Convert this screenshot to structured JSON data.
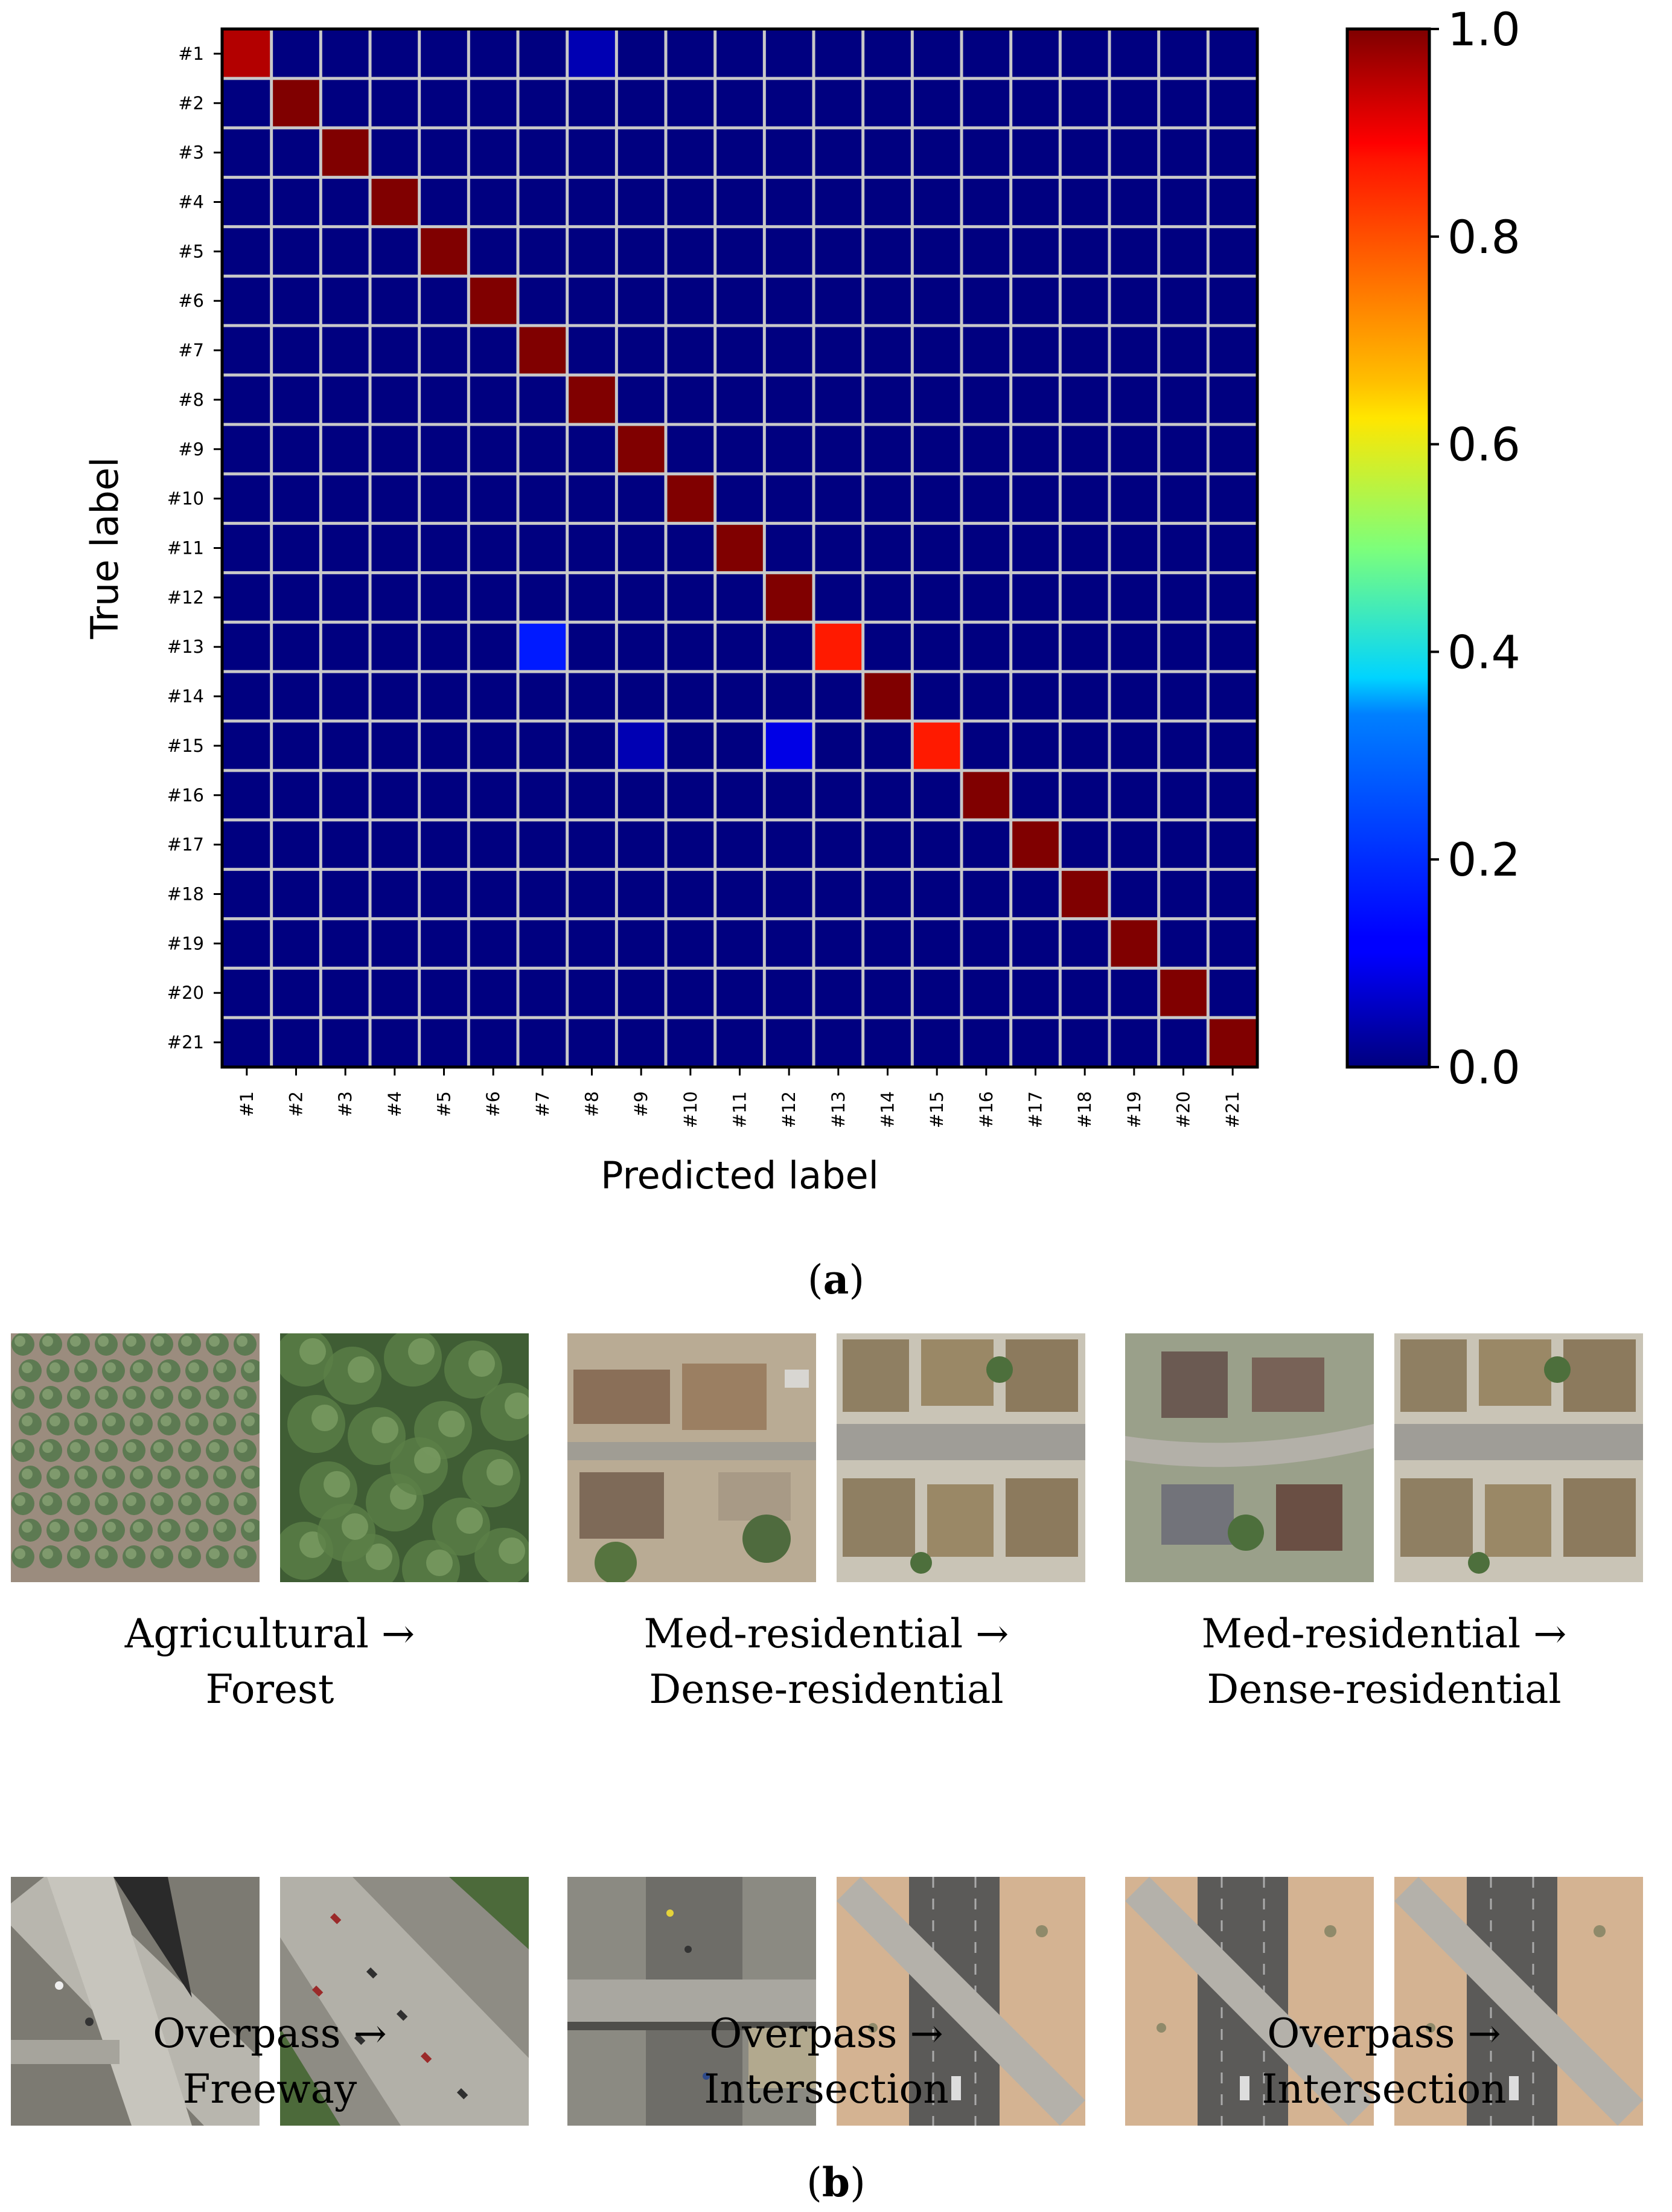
{
  "chart_data": {
    "type": "heatmap",
    "ylabel": "True label",
    "xlabel": "Predicted label",
    "labels": [
      "#1",
      "#2",
      "#3",
      "#4",
      "#5",
      "#6",
      "#7",
      "#8",
      "#9",
      "#10",
      "#11",
      "#12",
      "#13",
      "#14",
      "#15",
      "#16",
      "#17",
      "#18",
      "#19",
      "#20",
      "#21"
    ],
    "colorbar": {
      "colormap": "jet",
      "range": [
        0.0,
        1.0
      ],
      "ticks": [
        "0.0",
        "0.2",
        "0.4",
        "0.6",
        "0.8",
        "1.0"
      ]
    },
    "grid": true,
    "matrix": [
      [
        0.95,
        0,
        0,
        0,
        0,
        0,
        0,
        0.05,
        0,
        0,
        0,
        0,
        0,
        0,
        0,
        0,
        0,
        0,
        0,
        0,
        0
      ],
      [
        0,
        1,
        0,
        0,
        0,
        0,
        0,
        0,
        0,
        0,
        0,
        0,
        0,
        0,
        0,
        0,
        0,
        0,
        0,
        0,
        0
      ],
      [
        0,
        0,
        1,
        0,
        0,
        0,
        0,
        0,
        0,
        0,
        0,
        0,
        0,
        0,
        0,
        0,
        0,
        0,
        0,
        0,
        0
      ],
      [
        0,
        0,
        0,
        1,
        0,
        0,
        0,
        0,
        0,
        0,
        0,
        0,
        0,
        0,
        0,
        0,
        0,
        0,
        0,
        0,
        0
      ],
      [
        0,
        0,
        0,
        0,
        1,
        0,
        0,
        0,
        0,
        0,
        0,
        0,
        0,
        0,
        0,
        0,
        0,
        0,
        0,
        0,
        0
      ],
      [
        0,
        0,
        0,
        0,
        0,
        1,
        0,
        0,
        0,
        0,
        0,
        0,
        0,
        0,
        0,
        0,
        0,
        0,
        0,
        0,
        0
      ],
      [
        0,
        0,
        0,
        0,
        0,
        0,
        1,
        0,
        0,
        0,
        0,
        0,
        0,
        0,
        0,
        0,
        0,
        0,
        0,
        0,
        0
      ],
      [
        0,
        0,
        0,
        0,
        0,
        0,
        0,
        1,
        0,
        0,
        0,
        0,
        0,
        0,
        0,
        0,
        0,
        0,
        0,
        0,
        0
      ],
      [
        0,
        0,
        0,
        0,
        0,
        0,
        0,
        0,
        1,
        0,
        0,
        0,
        0,
        0,
        0,
        0,
        0,
        0,
        0,
        0,
        0
      ],
      [
        0,
        0,
        0,
        0,
        0,
        0,
        0,
        0,
        0,
        1,
        0,
        0,
        0,
        0,
        0,
        0,
        0,
        0,
        0,
        0,
        0
      ],
      [
        0,
        0,
        0,
        0,
        0,
        0,
        0,
        0,
        0,
        0,
        1,
        0,
        0,
        0,
        0,
        0,
        0,
        0,
        0,
        0,
        0
      ],
      [
        0,
        0,
        0,
        0,
        0,
        0,
        0,
        0,
        0,
        0,
        0,
        1,
        0,
        0,
        0,
        0,
        0,
        0,
        0,
        0,
        0
      ],
      [
        0,
        0,
        0,
        0,
        0,
        0,
        0.15,
        0,
        0,
        0,
        0,
        0,
        0.85,
        0,
        0,
        0,
        0,
        0,
        0,
        0,
        0
      ],
      [
        0,
        0,
        0,
        0,
        0,
        0,
        0,
        0,
        0,
        0,
        0,
        0,
        0,
        1,
        0,
        0,
        0,
        0,
        0,
        0,
        0
      ],
      [
        0,
        0,
        0,
        0,
        0,
        0,
        0,
        0,
        0.05,
        0,
        0,
        0.1,
        0,
        0,
        0.85,
        0,
        0,
        0,
        0,
        0,
        0
      ],
      [
        0,
        0,
        0,
        0,
        0,
        0,
        0,
        0,
        0,
        0,
        0,
        0,
        0,
        0,
        0,
        1,
        0,
        0,
        0,
        0,
        0
      ],
      [
        0,
        0,
        0,
        0,
        0,
        0,
        0,
        0,
        0,
        0,
        0,
        0,
        0,
        0,
        0,
        0,
        1,
        0,
        0,
        0,
        0
      ],
      [
        0,
        0,
        0,
        0,
        0,
        0,
        0,
        0,
        0,
        0,
        0,
        0,
        0,
        0,
        0,
        0,
        0,
        1,
        0,
        0,
        0
      ],
      [
        0,
        0,
        0,
        0,
        0,
        0,
        0,
        0,
        0,
        0,
        0,
        0,
        0,
        0,
        0,
        0,
        0,
        0,
        1,
        0,
        0
      ],
      [
        0,
        0,
        0,
        0,
        0,
        0,
        0,
        0,
        0,
        0,
        0,
        0,
        0,
        0,
        0,
        0,
        0,
        0,
        0,
        1,
        0
      ],
      [
        0,
        0,
        0,
        0,
        0,
        0,
        0,
        0,
        0,
        0,
        0,
        0,
        0,
        0,
        0,
        0,
        0,
        0,
        0,
        0,
        1
      ]
    ]
  },
  "captions": {
    "a": "a",
    "b": "b"
  },
  "pairs": [
    {
      "line1": "Agricultural →",
      "line2": "Forest",
      "left_icon": "orchard-aerial-image",
      "right_icon": "forest-aerial-image"
    },
    {
      "line1": "Med-residential →",
      "line2": "Dense-residential",
      "left_icon": "medium-residential-aerial-image",
      "right_icon": "dense-residential-aerial-image"
    },
    {
      "line1": "Med-residential →",
      "line2": "Dense-residential",
      "left_icon": "medium-residential-aerial-image",
      "right_icon": "dense-residential-aerial-image"
    },
    {
      "line1": "Overpass →",
      "line2": "Freeway",
      "left_icon": "overpass-aerial-image",
      "right_icon": "freeway-aerial-image"
    },
    {
      "line1": "Overpass →",
      "line2": "Intersection",
      "left_icon": "overpass-aerial-image",
      "right_icon": "intersection-aerial-image"
    },
    {
      "line1": "Overpass →",
      "line2": "Intersection",
      "left_icon": "overpass-aerial-image",
      "right_icon": "intersection-aerial-image"
    }
  ]
}
